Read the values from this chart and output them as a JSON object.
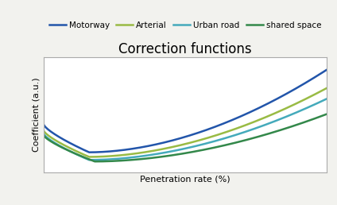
{
  "title": "Correction functions",
  "xlabel": "Penetration rate (%)",
  "ylabel": "Coefficient (a.u.)",
  "lines": [
    {
      "label": "Motorway",
      "color": "#2255aa",
      "lw": 1.8
    },
    {
      "label": "Arterial",
      "color": "#99bb44",
      "lw": 1.8
    },
    {
      "label": "Urban road",
      "color": "#44aabb",
      "lw": 1.8
    },
    {
      "label": "shared space",
      "color": "#33884a",
      "lw": 1.8
    }
  ],
  "figure_bg": "#f2f2ee",
  "axes_bg": "#ffffff",
  "title_fontsize": 12,
  "label_fontsize": 8,
  "legend_fontsize": 7.5
}
